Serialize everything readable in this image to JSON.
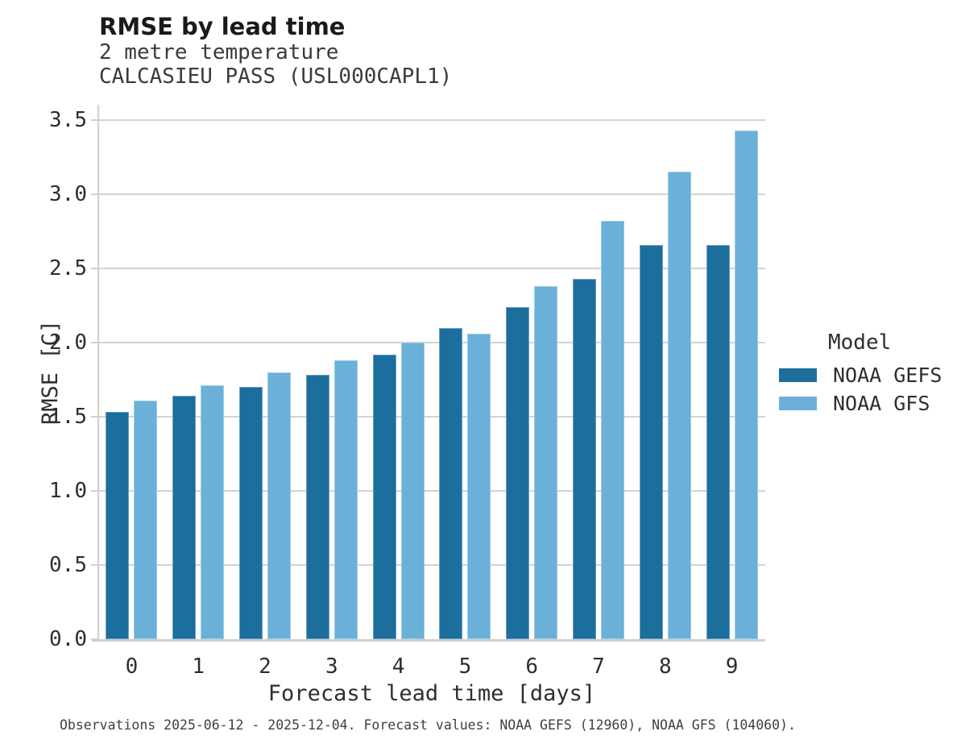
{
  "header": {
    "title": "RMSE by lead time",
    "subtitle1": "2 metre temperature",
    "subtitle2": "CALCASIEU PASS (USL000CAPL1)"
  },
  "legend": {
    "title": "Model",
    "entries": [
      {
        "label": "NOAA GEFS",
        "color": "#1c6e9c"
      },
      {
        "label": "NOAA GFS",
        "color": "#6ab0d8"
      }
    ]
  },
  "footer": {
    "note": "Observations 2025-06-12 - 2025-12-04. Forecast values: NOAA GEFS (12960), NOAA GFS (104060)."
  },
  "chart_data": {
    "type": "bar",
    "title": "RMSE by lead time",
    "subtitle": [
      "2 metre temperature",
      "CALCASIEU PASS (USL000CAPL1)"
    ],
    "categories": [
      "0",
      "1",
      "2",
      "3",
      "4",
      "5",
      "6",
      "7",
      "8",
      "9"
    ],
    "series": [
      {
        "name": "NOAA GEFS",
        "color": "#1c6e9c",
        "values": [
          1.53,
          1.64,
          1.7,
          1.78,
          1.92,
          2.1,
          2.24,
          2.43,
          2.66,
          2.66
        ]
      },
      {
        "name": "NOAA GFS",
        "color": "#6ab0d8",
        "values": [
          1.61,
          1.71,
          1.8,
          1.88,
          2.0,
          2.06,
          2.38,
          2.82,
          3.15,
          3.43
        ]
      }
    ],
    "xlabel": "Forecast lead time [days]",
    "ylabel": "RMSE [C]",
    "ylim": [
      0.0,
      3.5
    ],
    "ytick_step": 0.5,
    "yticks": [
      "0.0",
      "0.5",
      "1.0",
      "1.5",
      "2.0",
      "2.5",
      "3.0",
      "3.5"
    ],
    "grid": true,
    "legend_position": "right",
    "colors": {
      "grid": "#d3d3d3",
      "spine": "#cfcfcf",
      "text": "#2e2e2e"
    }
  }
}
